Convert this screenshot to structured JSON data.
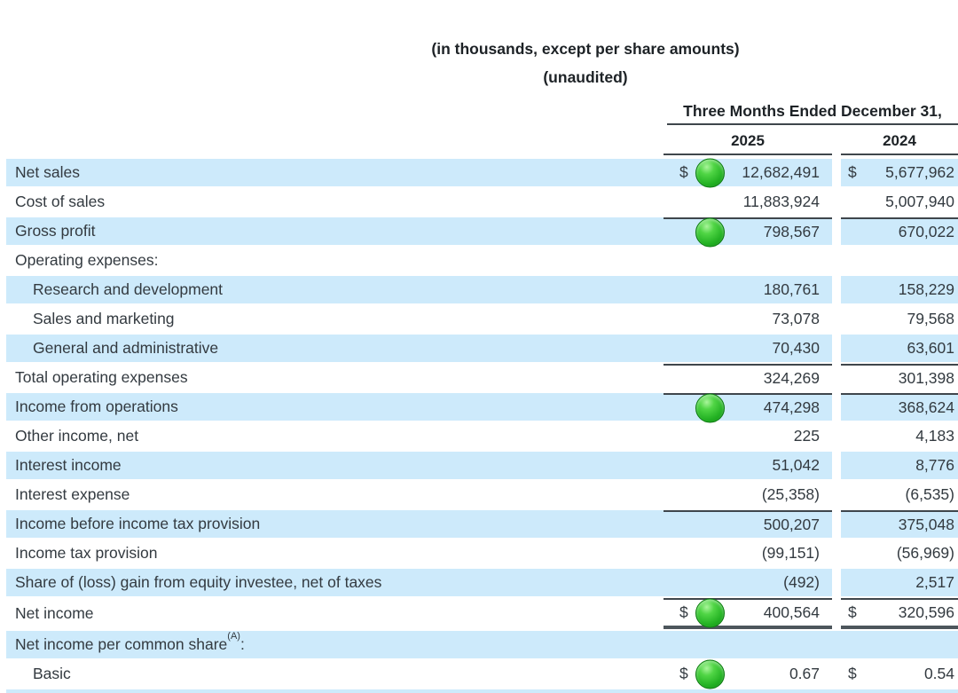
{
  "document": {
    "note_units": "(in thousands, except per share amounts)",
    "note_unaudited": "(unaudited)",
    "period_header": "Three Months Ended December 31,",
    "years": [
      "2025",
      "2024"
    ],
    "currency_symbol": "$"
  },
  "colors": {
    "row_highlight": "#cdeafb",
    "rule": "#3f464c",
    "rule_thick": "#4d565c",
    "text": "#333a40",
    "marker_green": "#2eb82e"
  },
  "rows": [
    {
      "label": "Net sales",
      "highlight": true,
      "dollar": true,
      "dot": true,
      "v2025": "12,682,491",
      "v2024": "5,677,962"
    },
    {
      "label": "Cost of sales",
      "v2025": "11,883,924",
      "v2024": "5,007,940"
    },
    {
      "label": "Gross profit",
      "highlight": true,
      "dot": true,
      "rule_top": true,
      "v2025": "798,567",
      "v2024": "670,022"
    },
    {
      "label": "Operating expenses:",
      "full": true
    },
    {
      "label": "Research and development",
      "indent": true,
      "highlight": true,
      "v2025": "180,761",
      "v2024": "158,229"
    },
    {
      "label": "Sales and marketing",
      "indent": true,
      "v2025": "73,078",
      "v2024": "79,568"
    },
    {
      "label": "General and administrative",
      "indent": true,
      "highlight": true,
      "v2025": "70,430",
      "v2024": "63,601"
    },
    {
      "label": "Total operating expenses",
      "rule_top": true,
      "v2025": "324,269",
      "v2024": "301,398"
    },
    {
      "label": "Income from operations",
      "highlight": true,
      "dot": true,
      "rule_top": true,
      "v2025": "474,298",
      "v2024": "368,624"
    },
    {
      "label": "Other income, net",
      "v2025": "225",
      "v2024": "4,183"
    },
    {
      "label": "Interest income",
      "highlight": true,
      "v2025": "51,042",
      "v2024": "8,776"
    },
    {
      "label": "Interest expense",
      "v2025": "(25,358)",
      "v2024": "(6,535)"
    },
    {
      "label": "Income before income tax provision",
      "highlight": true,
      "rule_top": true,
      "v2025": "500,207",
      "v2024": "375,048"
    },
    {
      "label": "Income tax provision",
      "v2025": "(99,151)",
      "v2024": "(56,969)"
    },
    {
      "label": "Share of (loss) gain from equity investee, net of taxes",
      "highlight": true,
      "v2025": "(492)",
      "v2024": "2,517"
    },
    {
      "label": "Net income",
      "dollar": true,
      "dot": true,
      "rule_top": true,
      "rule_bottom_thick": true,
      "tall": true,
      "v2025": "400,564",
      "v2024": "320,596"
    },
    {
      "label": "Net income per common share",
      "sup": "(A)",
      "suffix": ":",
      "highlight": true,
      "full": true
    },
    {
      "label": "Basic",
      "indent": true,
      "dollar": true,
      "dot": true,
      "v2025": "0.67",
      "v2024": "0.54"
    }
  ]
}
